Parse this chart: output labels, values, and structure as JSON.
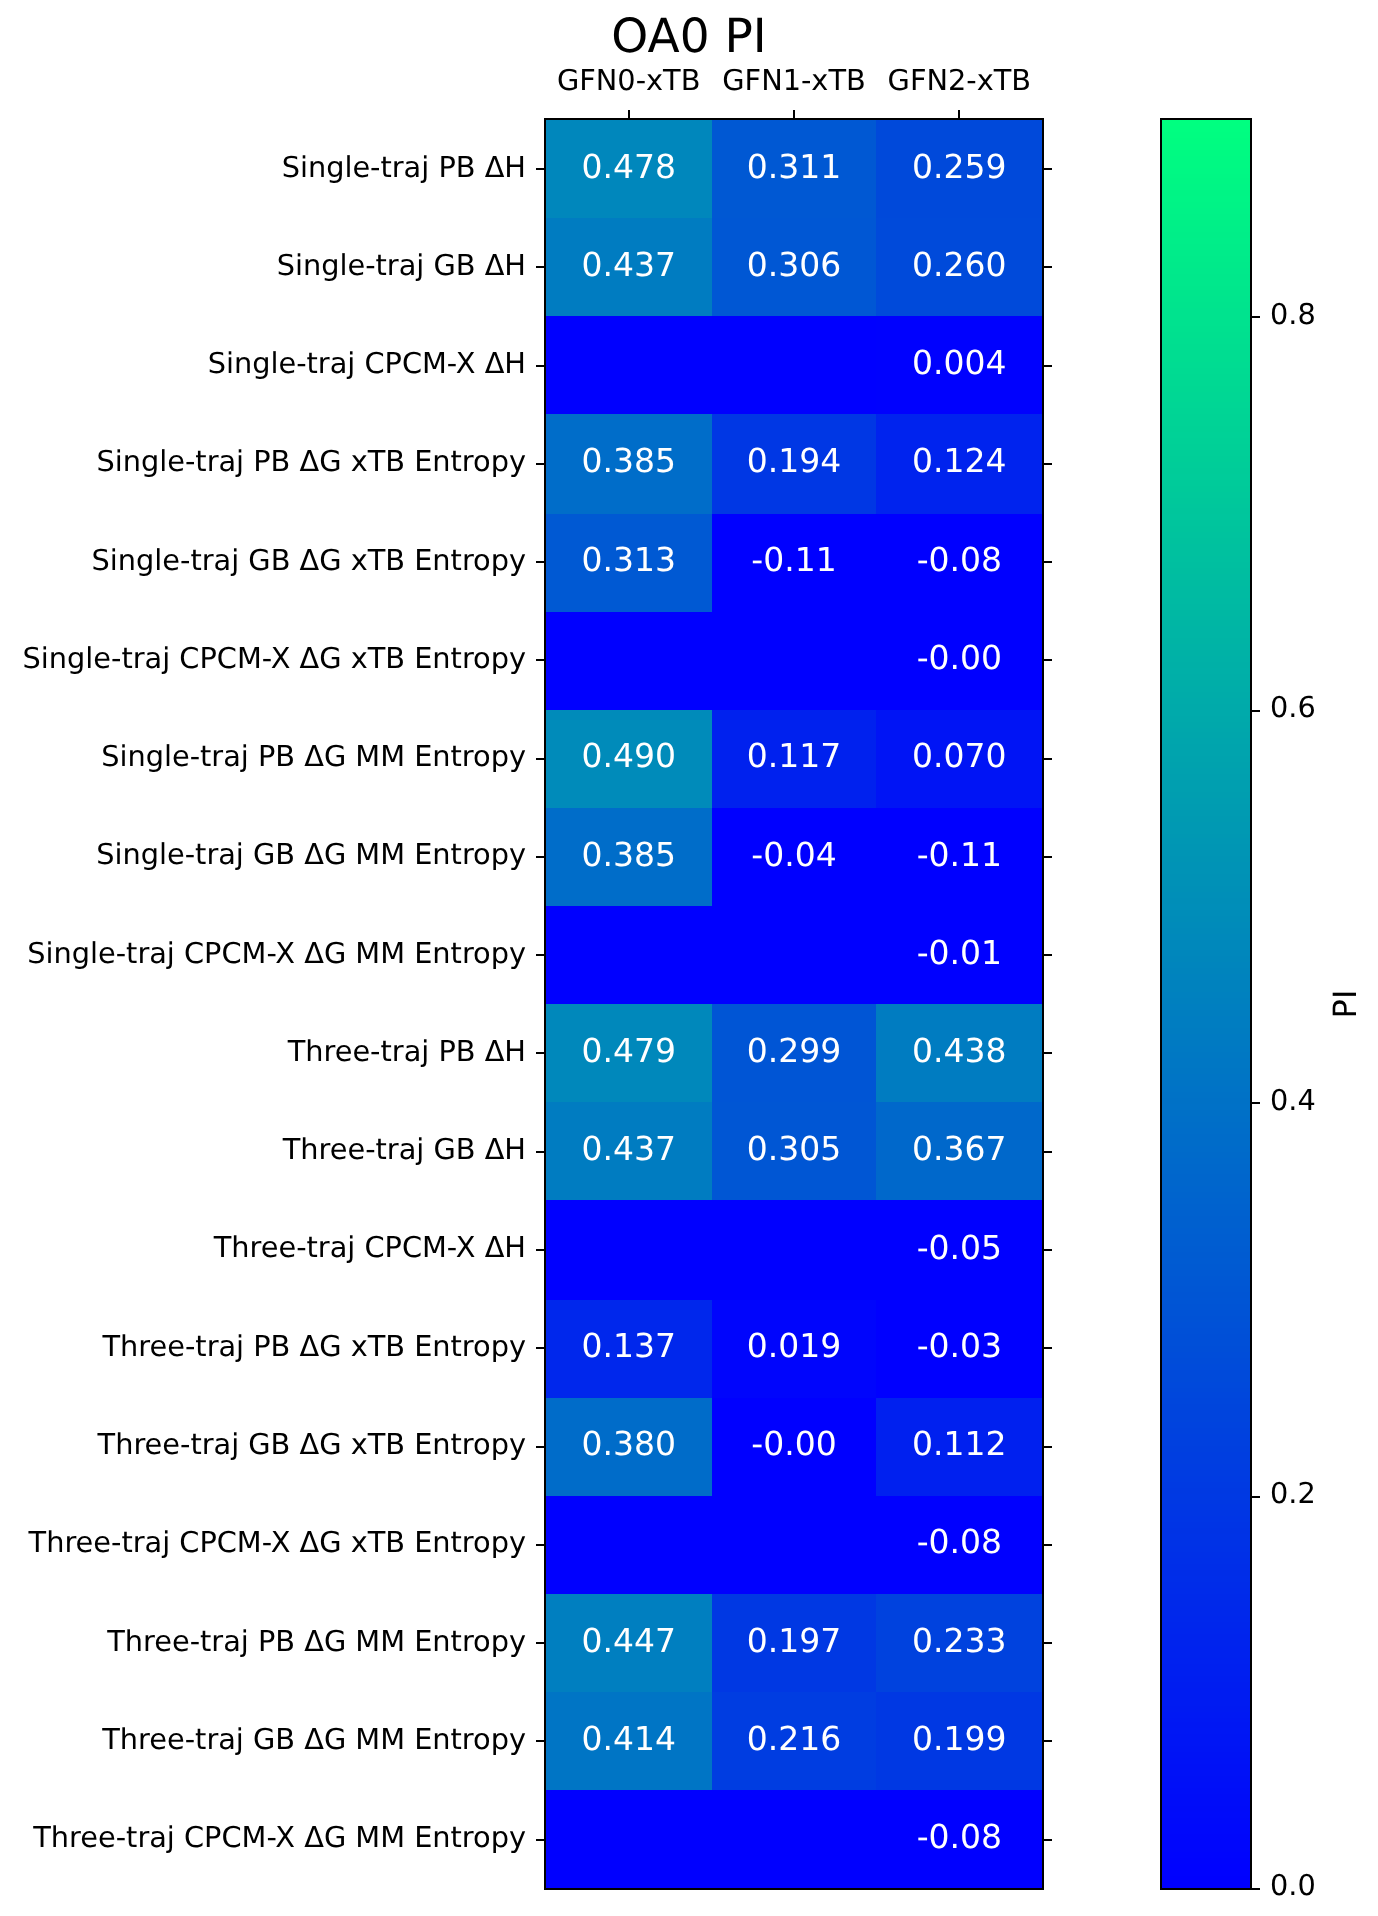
{
  "chart_data": {
    "type": "heatmap",
    "title": "OA0 PI",
    "clabel": "PI",
    "categories": [
      "GFN0-xTB",
      "GFN1-xTB",
      "GFN2-xTB"
    ],
    "y_categories": [
      "Single-traj PB ΔH",
      "Single-traj GB ΔH",
      "Single-traj CPCM-X ΔH",
      "Single-traj PB ΔG xTB Entropy",
      "Single-traj GB ΔG xTB Entropy",
      "Single-traj CPCM-X ΔG xTB Entropy",
      "Single-traj PB ΔG MM Entropy",
      "Single-traj GB ΔG MM Entropy",
      "Single-traj CPCM-X ΔG MM Entropy",
      "Three-traj PB ΔH",
      "Three-traj GB ΔH",
      "Three-traj CPCM-X ΔH",
      "Three-traj PB ΔG xTB Entropy",
      "Three-traj GB ΔG xTB Entropy",
      "Three-traj CPCM-X ΔG xTB Entropy",
      "Three-traj PB ΔG MM Entropy",
      "Three-traj GB ΔG MM Entropy",
      "Three-traj CPCM-X ΔG MM Entropy"
    ],
    "cells": [
      [
        0.478,
        0.311,
        0.259
      ],
      [
        0.437,
        0.306,
        0.26
      ],
      [
        null,
        null,
        0.004
      ],
      [
        0.385,
        0.194,
        0.124
      ],
      [
        0.313,
        -0.11,
        -0.08
      ],
      [
        null,
        null,
        -0.0
      ],
      [
        0.49,
        0.117,
        0.07
      ],
      [
        0.385,
        -0.04,
        -0.11
      ],
      [
        null,
        null,
        -0.01
      ],
      [
        0.479,
        0.299,
        0.438
      ],
      [
        0.437,
        0.305,
        0.367
      ],
      [
        null,
        null,
        -0.05
      ],
      [
        0.137,
        0.019,
        -0.03
      ],
      [
        0.38,
        -0.0,
        0.112
      ],
      [
        null,
        null,
        -0.08
      ],
      [
        0.447,
        0.197,
        0.233
      ],
      [
        0.414,
        0.216,
        0.199
      ],
      [
        null,
        null,
        -0.08
      ]
    ],
    "cell_labels": [
      [
        "0.478",
        "0.311",
        "0.259"
      ],
      [
        "0.437",
        "0.306",
        "0.260"
      ],
      [
        null,
        null,
        "0.004"
      ],
      [
        "0.385",
        "0.194",
        "0.124"
      ],
      [
        "0.313",
        "-0.11",
        "-0.08"
      ],
      [
        null,
        null,
        "-0.00"
      ],
      [
        "0.490",
        "0.117",
        "0.070"
      ],
      [
        "0.385",
        "-0.04",
        "-0.11"
      ],
      [
        null,
        null,
        "-0.01"
      ],
      [
        "0.479",
        "0.299",
        "0.438"
      ],
      [
        "0.437",
        "0.305",
        "0.367"
      ],
      [
        null,
        null,
        "-0.05"
      ],
      [
        "0.137",
        "0.019",
        "-0.03"
      ],
      [
        "0.380",
        "-0.00",
        "0.112"
      ],
      [
        null,
        null,
        "-0.08"
      ],
      [
        "0.447",
        "0.197",
        "0.233"
      ],
      [
        "0.414",
        "0.216",
        "0.199"
      ],
      [
        null,
        null,
        "-0.08"
      ]
    ],
    "clim": [
      0,
      0.9
    ],
    "cticks": [
      {
        "value": 0,
        "label": "0.0"
      },
      0.2,
      0.4,
      0.6,
      0.8
    ],
    "colors": [
      "#0000ff",
      "#00ff80"
    ]
  }
}
